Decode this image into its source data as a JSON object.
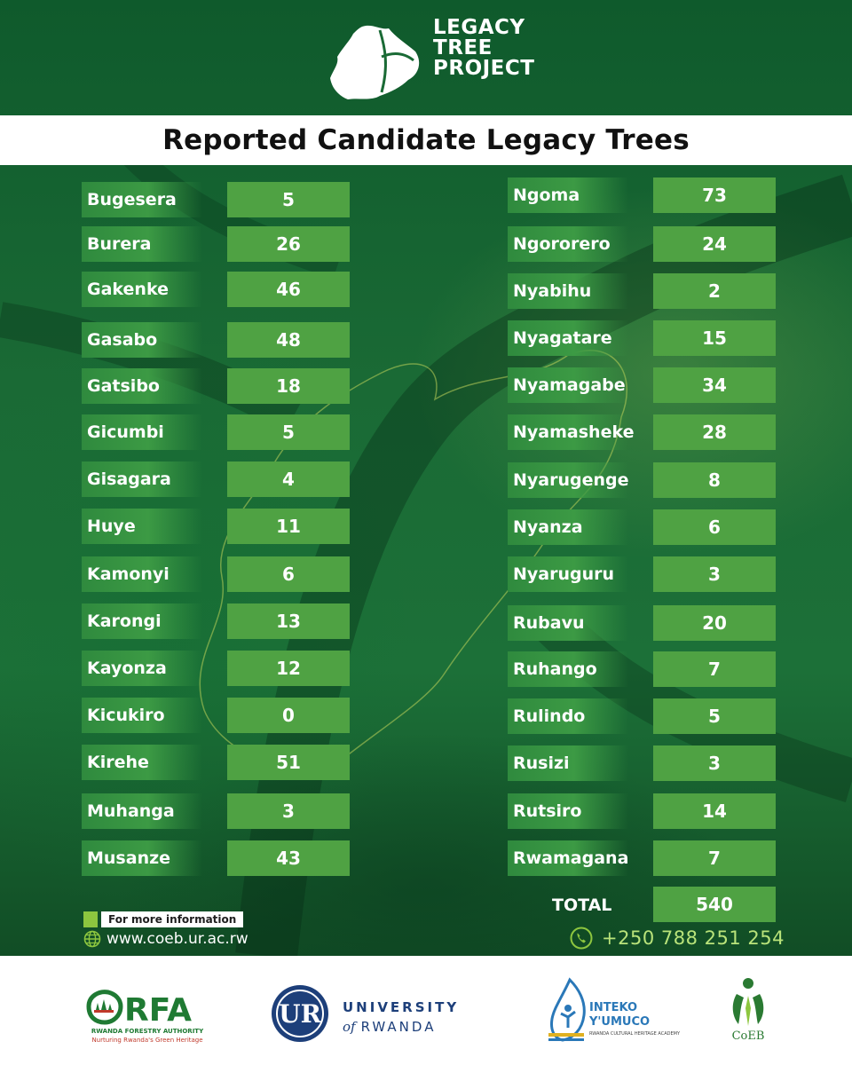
{
  "header": {
    "logo_lines": [
      "LEGACY",
      "TREE",
      "PROJECT"
    ],
    "title": "Reported Candidate Legacy Trees"
  },
  "left_column": [
    {
      "name": "Bugesera",
      "value": "5"
    },
    {
      "name": "Burera",
      "value": "26"
    },
    {
      "name": "Gakenke",
      "value": "46"
    },
    {
      "name": "Gasabo",
      "value": "48"
    },
    {
      "name": "Gatsibo",
      "value": "18"
    },
    {
      "name": "Gicumbi",
      "value": "5"
    },
    {
      "name": "Gisagara",
      "value": "4"
    },
    {
      "name": "Huye",
      "value": "11"
    },
    {
      "name": "Kamonyi",
      "value": "6"
    },
    {
      "name": "Karongi",
      "value": "13"
    },
    {
      "name": "Kayonza",
      "value": "12"
    },
    {
      "name": "Kicukiro",
      "value": "0"
    },
    {
      "name": "Kirehe",
      "value": "51"
    },
    {
      "name": "Muhanga",
      "value": "3"
    },
    {
      "name": "Musanze",
      "value": "43"
    }
  ],
  "right_column": [
    {
      "name": "Ngoma",
      "value": "73"
    },
    {
      "name": "Ngororero",
      "value": "24"
    },
    {
      "name": "Nyabihu",
      "value": "2"
    },
    {
      "name": "Nyagatare",
      "value": "15"
    },
    {
      "name": "Nyamagabe",
      "value": "34"
    },
    {
      "name": "Nyamasheke",
      "value": "28"
    },
    {
      "name": "Nyarugenge",
      "value": "8"
    },
    {
      "name": "Nyanza",
      "value": "6"
    },
    {
      "name": "Nyaruguru",
      "value": "3"
    },
    {
      "name": "Rubavu",
      "value": "20"
    },
    {
      "name": "Ruhango",
      "value": "7"
    },
    {
      "name": "Rulindo",
      "value": "5"
    },
    {
      "name": "Rusizi",
      "value": "3"
    },
    {
      "name": "Rutsiro",
      "value": "14"
    },
    {
      "name": "Rwamagana",
      "value": "7"
    }
  ],
  "total": {
    "label": "TOTAL",
    "value": "540"
  },
  "contact": {
    "more_info_label": "For more information",
    "website": "www.coeb.ur.ac.rw",
    "website_icon": "globe-icon",
    "phone": "+250 788 251 254",
    "phone_icon": "phone-icon"
  },
  "partners": {
    "rfa": {
      "mark": "RFA",
      "name": "RWANDA FORESTRY AUTHORITY",
      "tagline": "Nurturing Rwanda's Green Heritage"
    },
    "ur": {
      "line1": "UNIVERSITY",
      "line2_prefix": "of",
      "line2": "RWANDA"
    },
    "inteko": {
      "line1": "INTEKO",
      "line2": "Y'UMUCO",
      "line3": "RWANDA CULTURAL HERITAGE ACADEMY"
    },
    "coeb": {
      "name": "CoEB"
    }
  },
  "colors": {
    "background_green": "#1a6a35",
    "value_box_green": "#4fa243",
    "phone_text": "#b9e37a",
    "info_chip": "#8dc63f"
  }
}
